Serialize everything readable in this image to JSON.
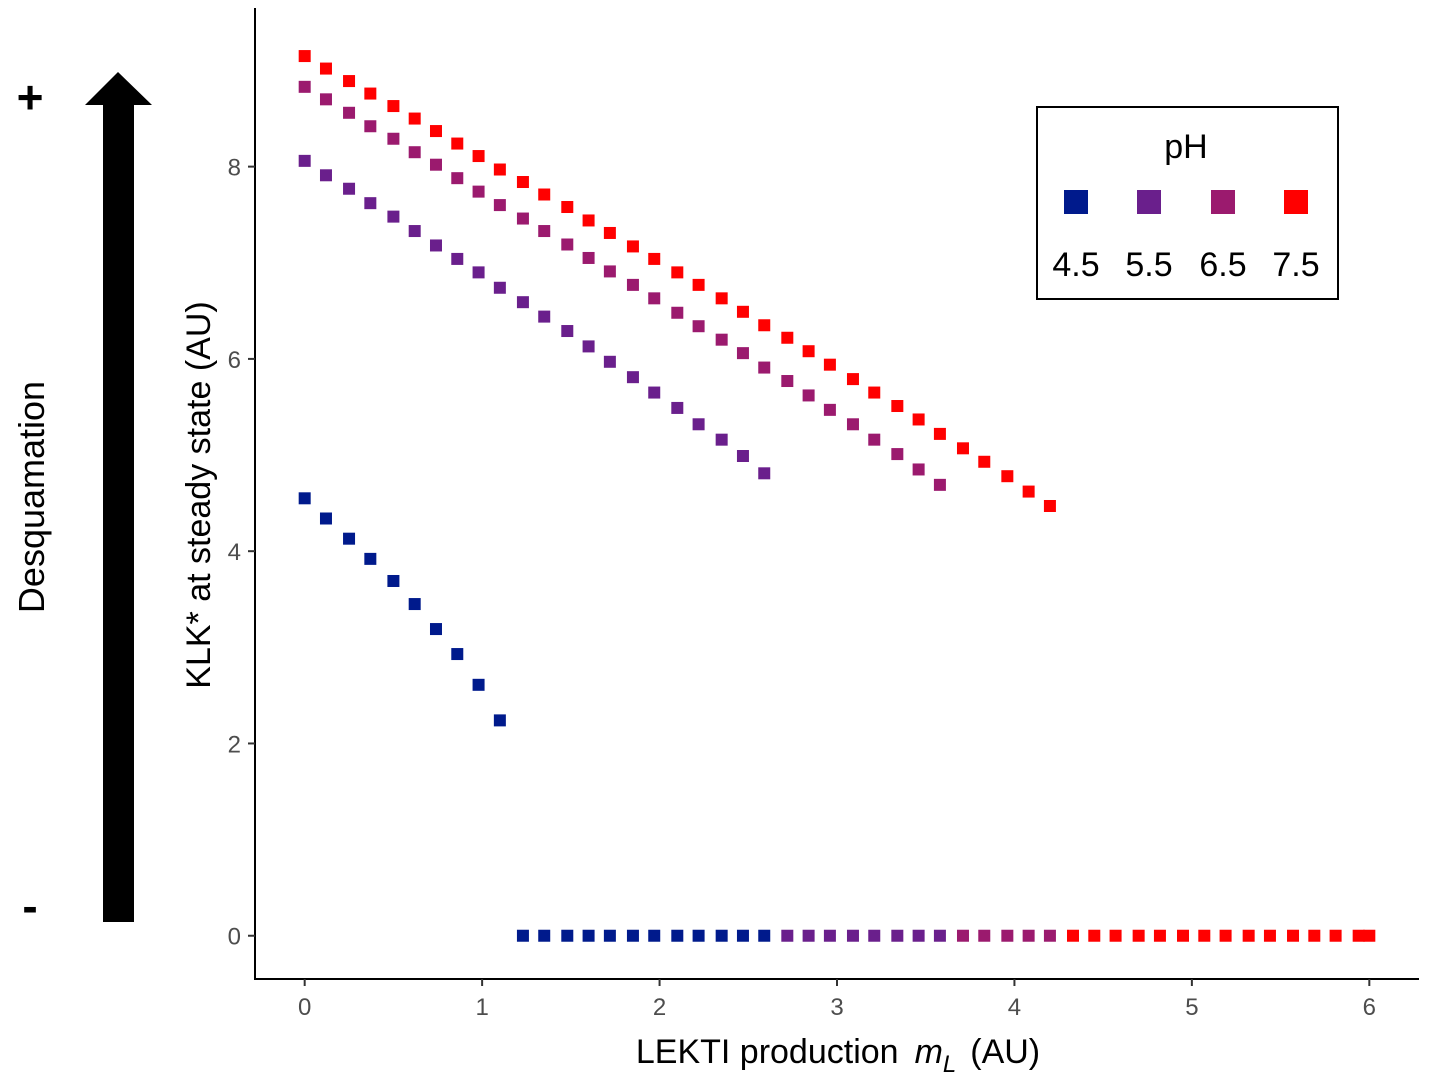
{
  "annotation": {
    "label": "Desquamation",
    "plus": "+",
    "minus": "-",
    "arrow_color": "#000000"
  },
  "chart_data": {
    "type": "scatter",
    "title": "",
    "xlabel": "LEKTI production",
    "xlabel_math": "m",
    "xlabel_math_sub": "L",
    "xlabel_unit": "(AU)",
    "ylabel": "KLK* at steady state (AU)",
    "xlim": [
      -0.28,
      6.28
    ],
    "ylim": [
      -0.45,
      9.65
    ],
    "x_ticks": [
      0,
      1,
      2,
      3,
      4,
      5,
      6
    ],
    "x_tick_labels": [
      "0",
      "1",
      "2",
      "3",
      "4",
      "5",
      "6"
    ],
    "y_ticks": [
      0,
      2,
      4,
      6,
      8
    ],
    "y_tick_labels": [
      "0",
      "2",
      "4",
      "6",
      "8"
    ],
    "grid": false,
    "legend": {
      "title": "pH",
      "position": "top-right"
    },
    "series": [
      {
        "name": "4.5",
        "color": "#001a8c",
        "points": [
          [
            0,
            4.55
          ],
          [
            0.12,
            4.34
          ],
          [
            0.25,
            4.13
          ],
          [
            0.37,
            3.92
          ],
          [
            0.5,
            3.69
          ],
          [
            0.62,
            3.45
          ],
          [
            0.74,
            3.19
          ],
          [
            0.86,
            2.93
          ],
          [
            0.98,
            2.61
          ],
          [
            1.1,
            2.24
          ]
        ],
        "zero_points": [
          1.23,
          1.35,
          1.48,
          1.6,
          1.72,
          1.85,
          1.97,
          2.1,
          2.22,
          2.35,
          2.47,
          2.59
        ]
      },
      {
        "name": "5.5",
        "color": "#6a1f8c",
        "points": [
          [
            0,
            8.06
          ],
          [
            0.12,
            7.91
          ],
          [
            0.25,
            7.77
          ],
          [
            0.37,
            7.62
          ],
          [
            0.5,
            7.48
          ],
          [
            0.62,
            7.33
          ],
          [
            0.74,
            7.18
          ],
          [
            0.86,
            7.04
          ],
          [
            0.98,
            6.9
          ],
          [
            1.1,
            6.74
          ],
          [
            1.23,
            6.59
          ],
          [
            1.35,
            6.44
          ],
          [
            1.48,
            6.29
          ],
          [
            1.6,
            6.13
          ],
          [
            1.72,
            5.97
          ],
          [
            1.85,
            5.81
          ],
          [
            1.97,
            5.65
          ],
          [
            2.1,
            5.49
          ],
          [
            2.22,
            5.32
          ],
          [
            2.35,
            5.16
          ],
          [
            2.47,
            4.99
          ],
          [
            2.59,
            4.81
          ]
        ],
        "zero_points": [
          2.72,
          2.84,
          2.96,
          3.09,
          3.21,
          3.34,
          3.46,
          3.58
        ]
      },
      {
        "name": "6.5",
        "color": "#9b1a6e",
        "points": [
          [
            0,
            8.83
          ],
          [
            0.12,
            8.7
          ],
          [
            0.25,
            8.56
          ],
          [
            0.37,
            8.42
          ],
          [
            0.5,
            8.29
          ],
          [
            0.62,
            8.15
          ],
          [
            0.74,
            8.02
          ],
          [
            0.86,
            7.88
          ],
          [
            0.98,
            7.74
          ],
          [
            1.1,
            7.6
          ],
          [
            1.23,
            7.46
          ],
          [
            1.35,
            7.33
          ],
          [
            1.48,
            7.19
          ],
          [
            1.6,
            7.05
          ],
          [
            1.72,
            6.91
          ],
          [
            1.85,
            6.77
          ],
          [
            1.97,
            6.63
          ],
          [
            2.1,
            6.48
          ],
          [
            2.22,
            6.34
          ],
          [
            2.35,
            6.2
          ],
          [
            2.47,
            6.06
          ],
          [
            2.59,
            5.91
          ],
          [
            2.72,
            5.77
          ],
          [
            2.84,
            5.62
          ],
          [
            2.96,
            5.47
          ],
          [
            3.09,
            5.32
          ],
          [
            3.21,
            5.16
          ],
          [
            3.34,
            5.01
          ],
          [
            3.46,
            4.85
          ],
          [
            3.58,
            4.69
          ]
        ],
        "zero_points": [
          3.71,
          3.83,
          3.96,
          4.08,
          4.2
        ]
      },
      {
        "name": "7.5",
        "color": "#ff0000",
        "points": [
          [
            0,
            9.15
          ],
          [
            0.12,
            9.02
          ],
          [
            0.25,
            8.89
          ],
          [
            0.37,
            8.76
          ],
          [
            0.5,
            8.63
          ],
          [
            0.62,
            8.5
          ],
          [
            0.74,
            8.37
          ],
          [
            0.86,
            8.24
          ],
          [
            0.98,
            8.11
          ],
          [
            1.1,
            7.97
          ],
          [
            1.23,
            7.84
          ],
          [
            1.35,
            7.71
          ],
          [
            1.48,
            7.58
          ],
          [
            1.6,
            7.44
          ],
          [
            1.72,
            7.31
          ],
          [
            1.85,
            7.17
          ],
          [
            1.97,
            7.04
          ],
          [
            2.1,
            6.9
          ],
          [
            2.22,
            6.77
          ],
          [
            2.35,
            6.63
          ],
          [
            2.47,
            6.49
          ],
          [
            2.59,
            6.35
          ],
          [
            2.72,
            6.22
          ],
          [
            2.84,
            6.08
          ],
          [
            2.96,
            5.94
          ],
          [
            3.09,
            5.79
          ],
          [
            3.21,
            5.65
          ],
          [
            3.34,
            5.51
          ],
          [
            3.46,
            5.37
          ],
          [
            3.58,
            5.22
          ],
          [
            3.71,
            5.07
          ],
          [
            3.83,
            4.93
          ],
          [
            3.96,
            4.78
          ],
          [
            4.08,
            4.62
          ],
          [
            4.2,
            4.47
          ]
        ],
        "zero_points": [
          4.33,
          4.45,
          4.57,
          4.7,
          4.82,
          4.95,
          5.07,
          5.19,
          5.32,
          5.44,
          5.57,
          5.69,
          5.81,
          5.94,
          6.0
        ]
      }
    ]
  }
}
